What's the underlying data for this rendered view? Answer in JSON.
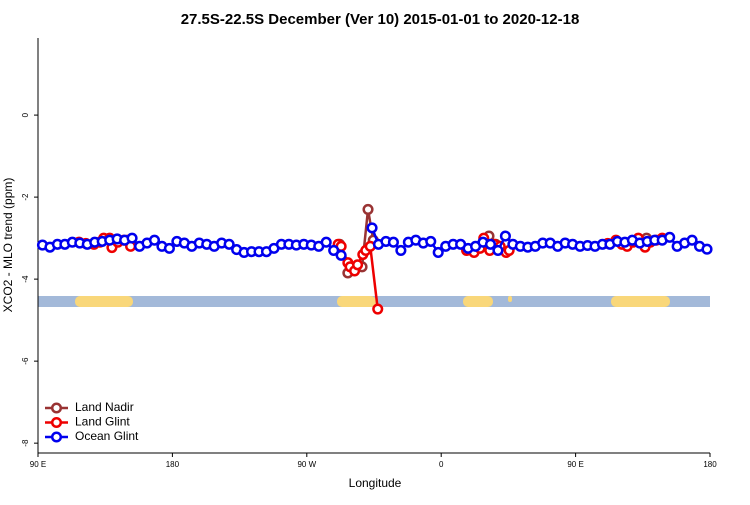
{
  "chart_data": {
    "type": "line",
    "title": "27.5S-22.5S December (Ver 10)   2015-01-01 to 2020-12-18",
    "x_label": "Longitude",
    "y_label": "XCO2 - MLO trend (ppm)",
    "xlim": [
      90,
      540
    ],
    "ylim": [
      -8.24,
      1.88
    ],
    "xticks": [
      {
        "value": 90,
        "label": "90 E"
      },
      180,
      {
        "value": 270,
        "label": "90 W"
      },
      {
        "value": 360,
        "label": "0"
      },
      {
        "value": 450,
        "label": "90 E"
      },
      {
        "value": 540,
        "label": "180"
      }
    ],
    "yticks": [
      0,
      -2,
      -4,
      -6,
      -8
    ],
    "legend": "bottom-left",
    "series": [
      {
        "name": "Land Nadir",
        "color": "#993333",
        "x": [
          292,
          297.5,
          302,
          307,
          311,
          314.5,
          null,
          392,
          396.5,
          null,
          497.5
        ],
        "values": [
          -3.15,
          -3.85,
          -3.75,
          -3.7,
          -2.3,
          -3.05,
          null,
          -2.95,
          -3.15,
          null,
          -3.0
        ]
      },
      {
        "name": "Land Glint",
        "color": "#ee0000",
        "x": [
          117.5,
          122,
          127.5,
          131.5,
          134,
          138,
          139.5,
          143.5,
          147.5,
          150,
          152,
          null,
          291,
          293,
          297.5,
          299,
          302,
          304,
          307.5,
          309.5,
          312.5,
          317.5,
          null,
          377,
          382,
          386,
          388.5,
          392.5,
          395.5,
          399.5,
          403.5,
          405.5,
          null,
          471.5,
          477,
          481,
          484.5,
          488.5,
          492,
          496.5,
          500,
          504,
          508
        ],
        "values": [
          -3.1,
          -3.13,
          -3.15,
          -3.1,
          -3.0,
          -3.0,
          -3.23,
          -3.1,
          -3.05,
          -3.05,
          -3.2,
          null,
          -3.15,
          -3.2,
          -3.6,
          -3.7,
          -3.8,
          -3.65,
          -3.4,
          -3.3,
          -3.2,
          -4.73,
          null,
          -3.3,
          -3.35,
          -3.25,
          -3.0,
          -3.3,
          -3.15,
          -3.2,
          -3.35,
          -3.3,
          null,
          -3.13,
          -3.05,
          -3.15,
          -3.2,
          -3.1,
          -3.0,
          -3.22,
          -3.1,
          -3.05,
          -3.0
        ]
      },
      {
        "name": "Ocean Glint",
        "color": "#0000ee",
        "x": [
          93,
          98,
          103,
          108,
          113,
          118,
          123,
          128,
          133,
          138,
          143,
          148,
          153,
          158,
          163,
          168,
          173,
          178,
          183,
          188,
          193,
          198,
          203,
          208,
          213,
          218,
          223,
          228,
          233,
          238,
          243,
          248,
          253,
          258,
          263,
          268,
          273,
          278,
          283,
          288,
          293,
          null,
          313.7,
          318,
          323,
          328,
          333,
          338,
          343,
          348,
          353,
          358,
          363,
          368,
          373,
          378,
          383,
          388,
          393,
          398,
          403,
          408,
          413,
          418,
          423,
          428,
          433,
          438,
          443,
          448,
          453,
          458,
          463,
          468,
          473,
          478,
          483,
          488,
          493,
          498,
          503,
          508,
          513,
          518,
          523,
          528,
          533,
          538
        ],
        "values": [
          -3.17,
          -3.22,
          -3.15,
          -3.15,
          -3.1,
          -3.12,
          -3.15,
          -3.1,
          -3.08,
          -3.05,
          -3.02,
          -3.05,
          -3.0,
          -3.2,
          -3.12,
          -3.05,
          -3.2,
          -3.25,
          -3.08,
          -3.12,
          -3.2,
          -3.12,
          -3.15,
          -3.2,
          -3.12,
          -3.15,
          -3.28,
          -3.35,
          -3.33,
          -3.33,
          -3.33,
          -3.25,
          -3.15,
          -3.15,
          -3.17,
          -3.15,
          -3.17,
          -3.2,
          -3.1,
          -3.3,
          -3.42,
          null,
          -2.75,
          -3.15,
          -3.08,
          -3.1,
          -3.3,
          -3.1,
          -3.05,
          -3.12,
          -3.08,
          -3.35,
          -3.2,
          -3.15,
          -3.15,
          -3.25,
          -3.2,
          -3.1,
          -3.15,
          -3.3,
          -2.95,
          -3.15,
          -3.2,
          -3.22,
          -3.2,
          -3.12,
          -3.12,
          -3.2,
          -3.12,
          -3.15,
          -3.2,
          -3.18,
          -3.2,
          -3.15,
          -3.15,
          -3.08,
          -3.1,
          -3.05,
          -3.12,
          -3.08,
          -3.05,
          -3.05,
          -2.98,
          -3.2,
          -3.12,
          -3.05,
          -3.2,
          -3.27
        ]
      }
    ]
  }
}
